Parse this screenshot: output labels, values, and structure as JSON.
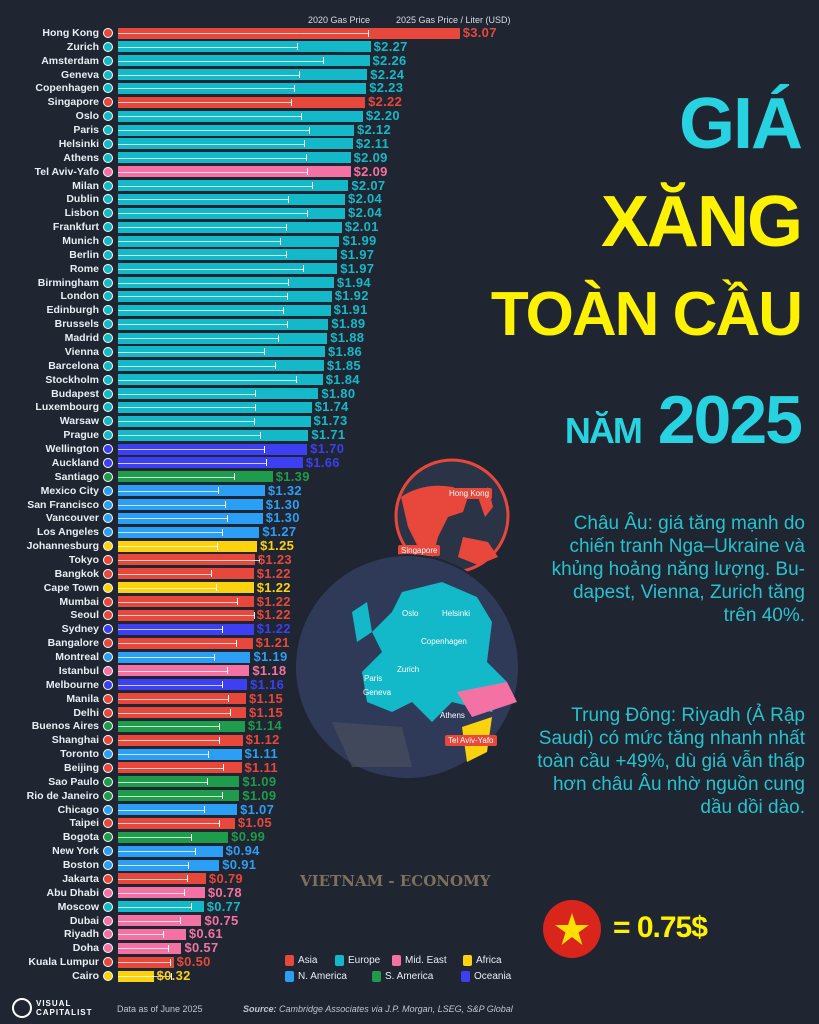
{
  "chart_data": {
    "type": "bar",
    "orientation": "horizontal",
    "title": "",
    "header_labels": {
      "previous": "2020 Gas Price",
      "current": "2025 Gas Price / Liter (USD)"
    },
    "value_prefix": "$",
    "xlim": [
      0,
      3.1
    ],
    "grid": false,
    "legend_placement": "bottom",
    "region_colors": {
      "Asia": "#e8483b",
      "Europe": "#13b9c9",
      "Mid. East": "#f472a3",
      "Africa": "#fcd10d",
      "N. America": "#2b9ef5",
      "S. America": "#1f9c4b",
      "Oceania": "#3d3ff2"
    },
    "legend": [
      "Asia",
      "Europe",
      "Mid. East",
      "Africa",
      "N. America",
      "S. America",
      "Oceania"
    ],
    "rows": [
      {
        "city": "Hong Kong",
        "region": "Asia",
        "v2025": 3.07,
        "v2020": 2.25
      },
      {
        "city": "Zurich",
        "region": "Europe",
        "v2025": 2.27,
        "v2020": 1.61
      },
      {
        "city": "Amsterdam",
        "region": "Europe",
        "v2025": 2.26,
        "v2020": 1.84
      },
      {
        "city": "Geneva",
        "region": "Europe",
        "v2025": 2.24,
        "v2020": 1.63
      },
      {
        "city": "Copenhagen",
        "region": "Europe",
        "v2025": 2.23,
        "v2020": 1.58
      },
      {
        "city": "Singapore",
        "region": "Asia",
        "v2025": 2.22,
        "v2020": 1.55
      },
      {
        "city": "Oslo",
        "region": "Europe",
        "v2025": 2.2,
        "v2020": 1.64
      },
      {
        "city": "Paris",
        "region": "Europe",
        "v2025": 2.12,
        "v2020": 1.72
      },
      {
        "city": "Helsinki",
        "region": "Europe",
        "v2025": 2.11,
        "v2020": 1.67
      },
      {
        "city": "Athens",
        "region": "Europe",
        "v2025": 2.09,
        "v2020": 1.69
      },
      {
        "city": "Tel Aviv-Yafo",
        "region": "Mid. East",
        "v2025": 2.09,
        "v2020": 1.7
      },
      {
        "city": "Milan",
        "region": "Europe",
        "v2025": 2.07,
        "v2020": 1.74
      },
      {
        "city": "Dublin",
        "region": "Europe",
        "v2025": 2.04,
        "v2020": 1.53
      },
      {
        "city": "Lisbon",
        "region": "Europe",
        "v2025": 2.04,
        "v2020": 1.7
      },
      {
        "city": "Frankfurt",
        "region": "Europe",
        "v2025": 2.01,
        "v2020": 1.51
      },
      {
        "city": "Munich",
        "region": "Europe",
        "v2025": 1.99,
        "v2020": 1.46
      },
      {
        "city": "Berlin",
        "region": "Europe",
        "v2025": 1.97,
        "v2020": 1.51
      },
      {
        "city": "Rome",
        "region": "Europe",
        "v2025": 1.97,
        "v2020": 1.66
      },
      {
        "city": "Birmingham",
        "region": "Europe",
        "v2025": 1.94,
        "v2020": 1.53
      },
      {
        "city": "London",
        "region": "Europe",
        "v2025": 1.92,
        "v2020": 1.52
      },
      {
        "city": "Edinburgh",
        "region": "Europe",
        "v2025": 1.91,
        "v2020": 1.48
      },
      {
        "city": "Brussels",
        "region": "Europe",
        "v2025": 1.89,
        "v2020": 1.52
      },
      {
        "city": "Madrid",
        "region": "Europe",
        "v2025": 1.88,
        "v2020": 1.44
      },
      {
        "city": "Vienna",
        "region": "Europe",
        "v2025": 1.86,
        "v2020": 1.31
      },
      {
        "city": "Barcelona",
        "region": "Europe",
        "v2025": 1.85,
        "v2020": 1.41
      },
      {
        "city": "Stockholm",
        "region": "Europe",
        "v2025": 1.84,
        "v2020": 1.6
      },
      {
        "city": "Budapest",
        "region": "Europe",
        "v2025": 1.8,
        "v2020": 1.23
      },
      {
        "city": "Luxembourg",
        "region": "Europe",
        "v2025": 1.74,
        "v2020": 1.23
      },
      {
        "city": "Warsaw",
        "region": "Europe",
        "v2025": 1.73,
        "v2020": 1.22
      },
      {
        "city": "Prague",
        "region": "Europe",
        "v2025": 1.71,
        "v2020": 1.28
      },
      {
        "city": "Wellington",
        "region": "Oceania",
        "v2025": 1.7,
        "v2020": 1.31
      },
      {
        "city": "Auckland",
        "region": "Oceania",
        "v2025": 1.66,
        "v2020": 1.33
      },
      {
        "city": "Santiago",
        "region": "S. America",
        "v2025": 1.39,
        "v2020": 1.04
      },
      {
        "city": "Mexico City",
        "region": "N. America",
        "v2025": 1.32,
        "v2020": 0.9
      },
      {
        "city": "San Francisco",
        "region": "N. America",
        "v2025": 1.3,
        "v2020": 0.96
      },
      {
        "city": "Vancouver",
        "region": "N. America",
        "v2025": 1.3,
        "v2020": 0.98
      },
      {
        "city": "Los Angeles",
        "region": "N. America",
        "v2025": 1.27,
        "v2020": 0.93
      },
      {
        "city": "Johannesburg",
        "region": "Africa",
        "v2025": 1.25,
        "v2020": 0.89
      },
      {
        "city": "Tokyo",
        "region": "Asia",
        "v2025": 1.23,
        "v2020": 1.27
      },
      {
        "city": "Bangkok",
        "region": "Asia",
        "v2025": 1.22,
        "v2020": 0.84
      },
      {
        "city": "Cape Town",
        "region": "Africa",
        "v2025": 1.22,
        "v2020": 0.88
      },
      {
        "city": "Mumbai",
        "region": "Asia",
        "v2025": 1.22,
        "v2020": 1.07
      },
      {
        "city": "Seoul",
        "region": "Asia",
        "v2025": 1.22,
        "v2020": 1.22
      },
      {
        "city": "Sydney",
        "region": "Oceania",
        "v2025": 1.22,
        "v2020": 0.93
      },
      {
        "city": "Bangalore",
        "region": "Asia",
        "v2025": 1.21,
        "v2020": 1.06
      },
      {
        "city": "Montreal",
        "region": "N. America",
        "v2025": 1.19,
        "v2020": 0.86
      },
      {
        "city": "Istanbul",
        "region": "Mid. East",
        "v2025": 1.18,
        "v2020": 0.98
      },
      {
        "city": "Melbourne",
        "region": "Oceania",
        "v2025": 1.16,
        "v2020": 0.93
      },
      {
        "city": "Manila",
        "region": "Asia",
        "v2025": 1.15,
        "v2020": 0.99
      },
      {
        "city": "Delhi",
        "region": "Asia",
        "v2025": 1.15,
        "v2020": 1.01
      },
      {
        "city": "Buenos Aires",
        "region": "S. America",
        "v2025": 1.14,
        "v2020": 0.91
      },
      {
        "city": "Shanghai",
        "region": "Asia",
        "v2025": 1.12,
        "v2020": 0.91
      },
      {
        "city": "Toronto",
        "region": "N. America",
        "v2025": 1.11,
        "v2020": 0.81
      },
      {
        "city": "Beijing",
        "region": "Asia",
        "v2025": 1.11,
        "v2020": 0.94
      },
      {
        "city": "Sao Paulo",
        "region": "S. America",
        "v2025": 1.09,
        "v2020": 0.8
      },
      {
        "city": "Rio de Janeiro",
        "region": "S. America",
        "v2025": 1.09,
        "v2020": 0.93
      },
      {
        "city": "Chicago",
        "region": "N. America",
        "v2025": 1.07,
        "v2020": 0.77
      },
      {
        "city": "Taipei",
        "region": "Asia",
        "v2025": 1.05,
        "v2020": 0.91
      },
      {
        "city": "Bogota",
        "region": "S. America",
        "v2025": 0.99,
        "v2020": 0.66
      },
      {
        "city": "New York",
        "region": "N. America",
        "v2025": 0.94,
        "v2020": 0.69
      },
      {
        "city": "Boston",
        "region": "N. America",
        "v2025": 0.91,
        "v2020": 0.63
      },
      {
        "city": "Jakarta",
        "region": "Asia",
        "v2025": 0.79,
        "v2020": 0.62
      },
      {
        "city": "Abu Dhabi",
        "region": "Mid. East",
        "v2025": 0.78,
        "v2020": 0.59
      },
      {
        "city": "Moscow",
        "region": "Europe",
        "v2025": 0.77,
        "v2020": 0.66
      },
      {
        "city": "Dubai",
        "region": "Mid. East",
        "v2025": 0.75,
        "v2020": 0.56
      },
      {
        "city": "Riyadh",
        "region": "Mid. East",
        "v2025": 0.61,
        "v2020": 0.4
      },
      {
        "city": "Doha",
        "region": "Mid. East",
        "v2025": 0.57,
        "v2020": 0.45
      },
      {
        "city": "Kuala Lumpur",
        "region": "Asia",
        "v2025": 0.5,
        "v2020": 0.47
      },
      {
        "city": "Cairo",
        "region": "Africa",
        "v2025": 0.32,
        "v2020": 0.48
      }
    ]
  },
  "title": {
    "line1": "GIÁ",
    "line2": "XĂNG",
    "line3": "TOÀN CẦU",
    "line4_small": "NĂM",
    "line4_big": "2025",
    "colors": {
      "cyan": "#27d3e0",
      "yellow": "#fff200"
    }
  },
  "notes": {
    "europe": "Châu Âu: giá tăng mạnh do chiến tranh Nga–Ukraine và khủng hoảng năng lượng. Bu-dapest, Vienna, Zurich tăng trên 40%.",
    "middle_east": "Trung Đông: Riyadh (Ả Rập Saudi) có mức tăng nhanh nhất toàn cầu +49%, dù giá vẫn thấp hơn châu Âu nhờ nguồn cung dầu dồi dào."
  },
  "vietnam": {
    "equals": "= 0.75$",
    "flag_icon": "vietnam-flag"
  },
  "map": {
    "asia_labels": [
      "Hong Kong",
      "Singapore"
    ],
    "europe_labels": [
      "Oslo",
      "Helsinki",
      "Copenhagen",
      "Zurich",
      "Paris",
      "Geneva",
      "Athens",
      "Tel Aviv-Yafo"
    ],
    "watermark": "VIETNAM - ECONOMY"
  },
  "footer": {
    "logo": "VISUAL CAPITALIST",
    "date_note": "Data as of June 2025",
    "source_label": "Source:",
    "source_text": "Cambridge Associates via J.P. Morgan, LSEG, S&P Global"
  }
}
